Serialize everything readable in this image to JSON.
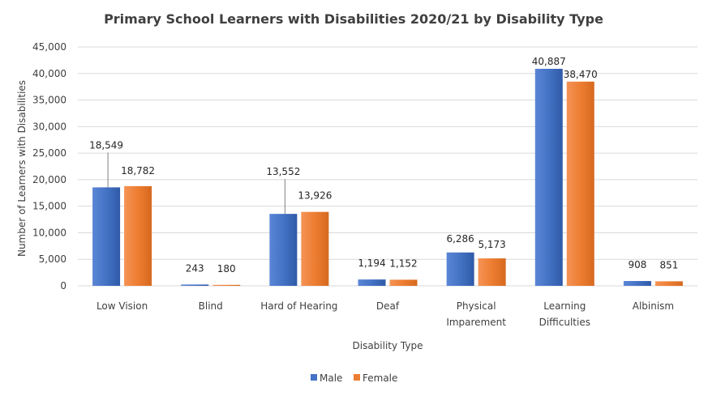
{
  "chart_data": {
    "type": "bar",
    "title": "Primary School Learners with Disabilities 2020/21 by Disability Type",
    "xlabel": "Disability Type",
    "ylabel": "Number of Learners with Disabilities",
    "ylim": [
      0,
      45000
    ],
    "yticks": [
      0,
      5000,
      10000,
      15000,
      20000,
      25000,
      30000,
      35000,
      40000,
      45000
    ],
    "ytick_labels": [
      "0",
      "5,000",
      "10,000",
      "15,000",
      "20,000",
      "25,000",
      "30,000",
      "35,000",
      "40,000",
      "45,000"
    ],
    "grid": true,
    "legend_position": "bottom",
    "categories": [
      [
        "Low Vision"
      ],
      [
        "Blind"
      ],
      [
        "Hard of Hearing"
      ],
      [
        "Deaf"
      ],
      [
        "Physical",
        "Imparement"
      ],
      [
        "Learning",
        "Difficulties"
      ],
      [
        "Albinism"
      ]
    ],
    "series": [
      {
        "name": "Male",
        "color": "#4472C4",
        "values": [
          18549,
          243,
          13552,
          1194,
          6286,
          40887,
          908
        ],
        "labels": [
          "18,549",
          "243",
          "13,552",
          "1,194",
          "6,286",
          "40,887",
          "908"
        ]
      },
      {
        "name": "Female",
        "color": "#ED7D31",
        "values": [
          18782,
          180,
          13926,
          1152,
          5173,
          38470,
          851
        ],
        "labels": [
          "18,782",
          "180",
          "13,926",
          "1,152",
          "5,173",
          "38,470",
          "851"
        ]
      }
    ]
  }
}
